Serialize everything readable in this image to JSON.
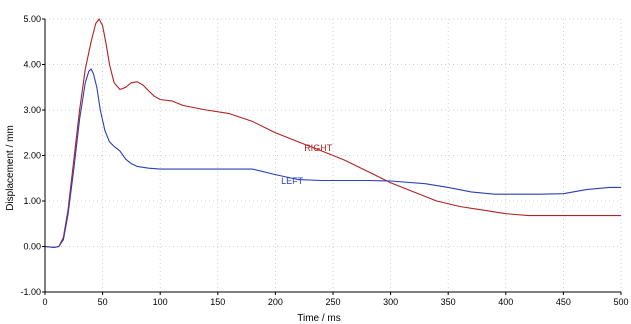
{
  "chart_data": {
    "type": "line",
    "xlabel": "Time / ms",
    "ylabel": "Displacement / mm",
    "xlim": [
      0,
      500
    ],
    "ylim": [
      -1,
      5
    ],
    "grid": true,
    "x_ticks": [
      {
        "value": 0,
        "label": "0"
      },
      {
        "value": 50,
        "label": "50"
      },
      {
        "value": 100,
        "label": "100"
      },
      {
        "value": 150,
        "label": "150"
      },
      {
        "value": 200,
        "label": "200"
      },
      {
        "value": 250,
        "label": "250"
      },
      {
        "value": 300,
        "label": "300"
      },
      {
        "value": 350,
        "label": "350"
      },
      {
        "value": 400,
        "label": "400"
      },
      {
        "value": 450,
        "label": "450"
      },
      {
        "value": 500,
        "label": "500"
      }
    ],
    "y_ticks": [
      {
        "value": -1,
        "label": "-1.00"
      },
      {
        "value": 0,
        "label": "0.00"
      },
      {
        "value": 1,
        "label": "1.00"
      },
      {
        "value": 2,
        "label": "2.00"
      },
      {
        "value": 3,
        "label": "3.00"
      },
      {
        "value": 4,
        "label": "4.00"
      },
      {
        "value": 5,
        "label": "5.00"
      }
    ],
    "series": [
      {
        "name": "RIGHT",
        "color": "#b22222",
        "label": {
          "text": "RIGHT",
          "x": 225,
          "y": 2.1
        },
        "x": [
          0,
          8,
          12,
          16,
          20,
          25,
          30,
          35,
          40,
          44,
          47,
          50,
          53,
          56,
          60,
          65,
          70,
          75,
          80,
          85,
          90,
          95,
          100,
          110,
          120,
          140,
          160,
          180,
          200,
          220,
          240,
          260,
          280,
          300,
          320,
          340,
          360,
          380,
          400,
          420,
          440,
          460,
          480,
          500
        ],
        "y": [
          0,
          -0.02,
          0,
          0.2,
          0.8,
          1.9,
          3.0,
          3.9,
          4.5,
          4.9,
          5.0,
          4.85,
          4.45,
          4.0,
          3.6,
          3.45,
          3.5,
          3.6,
          3.62,
          3.55,
          3.42,
          3.3,
          3.23,
          3.2,
          3.1,
          3.0,
          2.92,
          2.75,
          2.5,
          2.3,
          2.1,
          1.9,
          1.65,
          1.4,
          1.2,
          1.0,
          0.88,
          0.8,
          0.72,
          0.68,
          0.68,
          0.68,
          0.68,
          0.68
        ]
      },
      {
        "name": "LEFT",
        "color": "#2b3fb8",
        "label": {
          "text": "LEFT",
          "x": 205,
          "y": 1.37
        },
        "x": [
          0,
          8,
          12,
          16,
          20,
          25,
          30,
          35,
          38,
          40,
          42,
          45,
          48,
          52,
          56,
          60,
          65,
          70,
          75,
          80,
          90,
          100,
          120,
          150,
          180,
          200,
          220,
          240,
          260,
          280,
          300,
          330,
          350,
          370,
          390,
          410,
          430,
          450,
          470,
          490,
          500
        ],
        "y": [
          0,
          -0.02,
          0,
          0.15,
          0.7,
          1.7,
          2.8,
          3.6,
          3.85,
          3.9,
          3.8,
          3.5,
          3.0,
          2.55,
          2.3,
          2.2,
          2.1,
          1.92,
          1.82,
          1.76,
          1.72,
          1.7,
          1.7,
          1.7,
          1.7,
          1.58,
          1.47,
          1.45,
          1.45,
          1.45,
          1.44,
          1.38,
          1.3,
          1.2,
          1.15,
          1.15,
          1.15,
          1.16,
          1.25,
          1.3,
          1.3
        ]
      }
    ]
  }
}
